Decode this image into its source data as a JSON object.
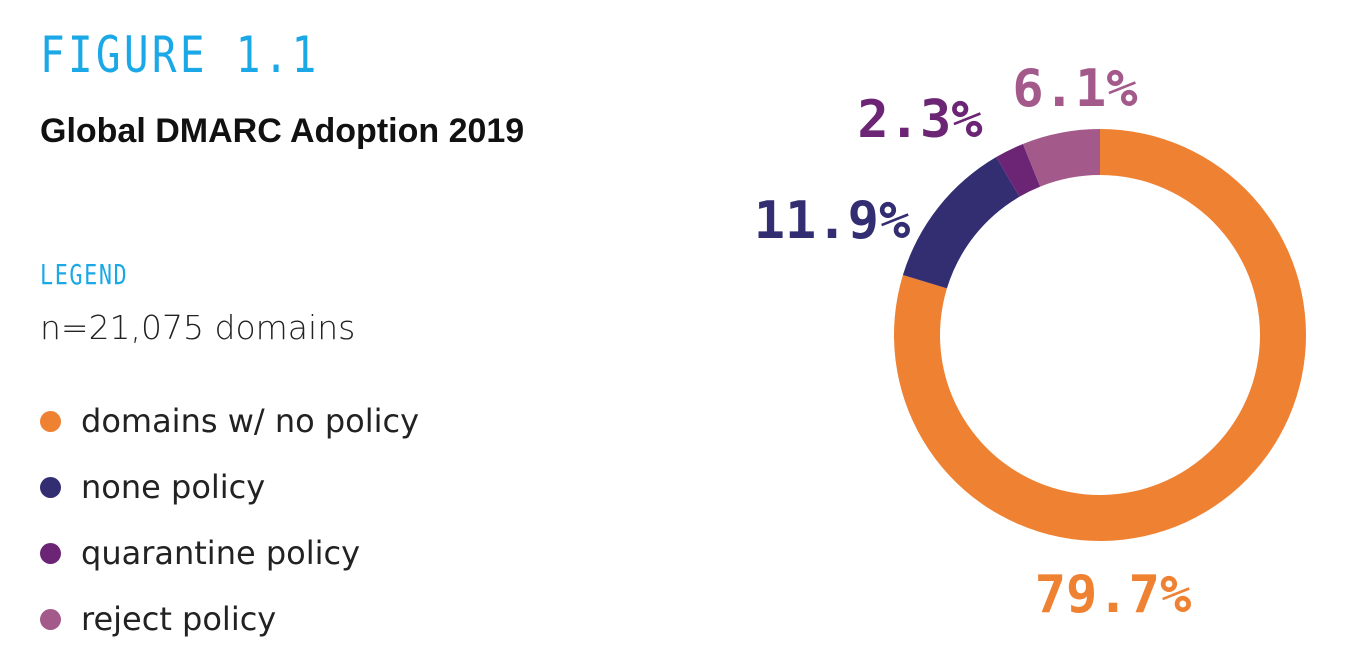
{
  "figure_label": "FIGURE 1.1",
  "chart_data": {
    "type": "pie",
    "title": "Global DMARC Adoption 2019",
    "legend_heading": "LEGEND",
    "legend_note": "n=21,075 domains",
    "legend_position": "left",
    "unit": "%",
    "slices": [
      {
        "name": "domains w/ no policy",
        "value": 79.7,
        "label": "79.7%",
        "color": "#ef8132"
      },
      {
        "name": "none policy",
        "value": 11.9,
        "label": "11.9%",
        "color": "#332d72"
      },
      {
        "name": "quarantine policy",
        "value": 2.3,
        "label": "2.3%",
        "color": "#6c2475"
      },
      {
        "name": "reject policy",
        "value": 6.1,
        "label": "6.1%",
        "color": "#a35a8a"
      }
    ]
  }
}
